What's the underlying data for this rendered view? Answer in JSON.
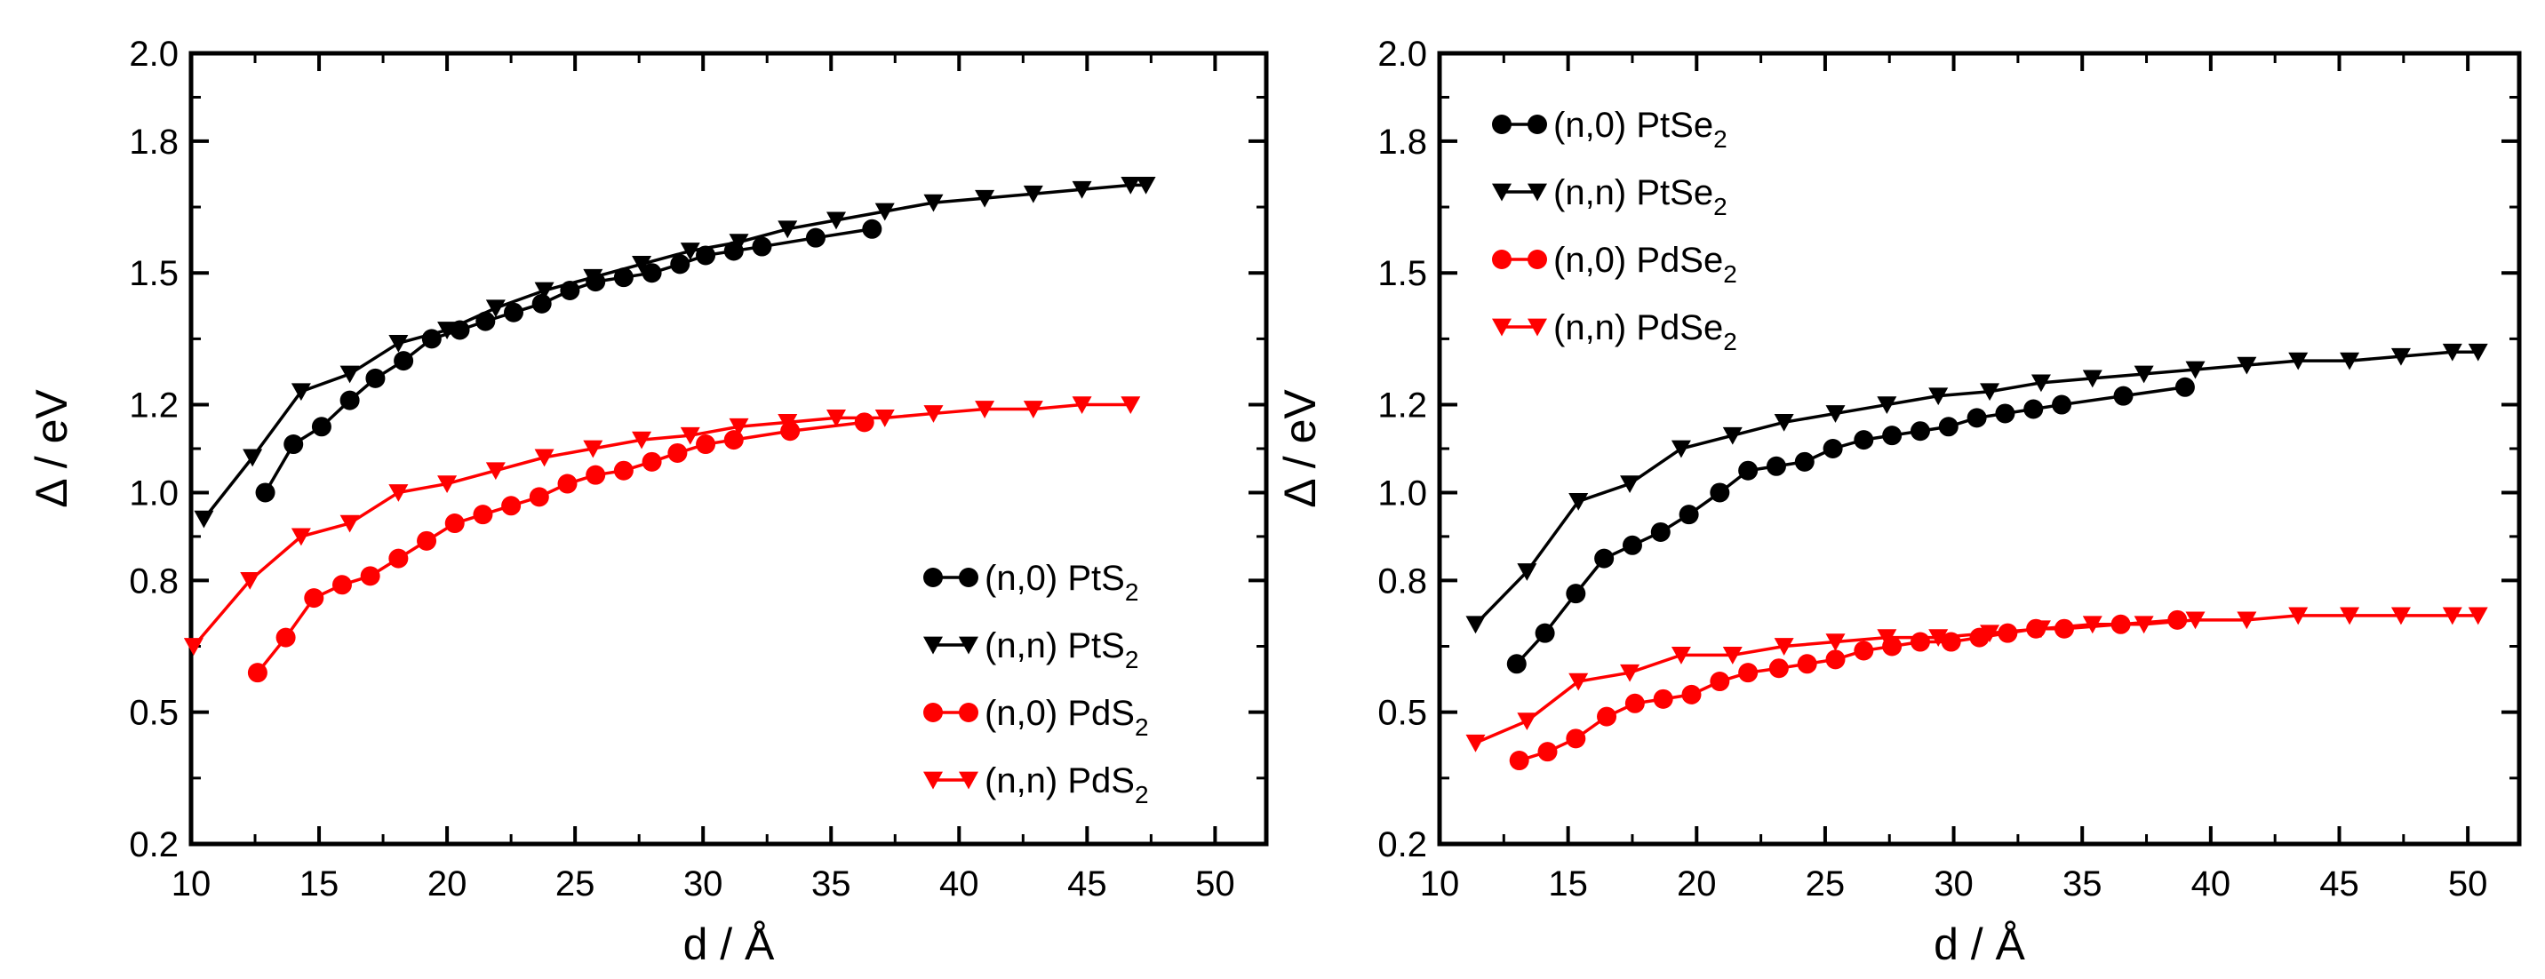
{
  "chart_data": [
    {
      "type": "line",
      "xlabel": "d / Å",
      "ylabel": "Δ / eV",
      "xlim": [
        10,
        52
      ],
      "ylim": [
        0.2,
        2.0
      ],
      "x_ticks": [
        10,
        15,
        20,
        25,
        30,
        35,
        40,
        45,
        50
      ],
      "y_ticks": [
        0.2,
        0.5,
        0.8,
        1.0,
        1.2,
        1.5,
        1.8,
        2.0
      ],
      "y_tick_labels": [
        "0.2",
        "0.5",
        "0.8",
        "1.0",
        "1.2",
        "1.5",
        "1.8",
        "2.0"
      ],
      "legend_position": "bottom-right",
      "series": [
        {
          "name": "(n,0) PtS2",
          "legend_main": "(n,0) PtS",
          "legend_sub": "2",
          "color": "#000000",
          "marker": "circle",
          "x": [
            12.9,
            14.0,
            15.1,
            16.2,
            17.2,
            18.3,
            19.4,
            20.5,
            21.5,
            22.6,
            23.7,
            24.8,
            25.8,
            26.9,
            28.0,
            29.1,
            30.1,
            31.2,
            32.3,
            34.4,
            36.6
          ],
          "y": [
            1.0,
            1.11,
            1.15,
            1.21,
            1.26,
            1.3,
            1.35,
            1.37,
            1.39,
            1.41,
            1.43,
            1.46,
            1.48,
            1.49,
            1.5,
            1.52,
            1.54,
            1.55,
            1.56,
            1.58,
            1.6
          ]
        },
        {
          "name": "(n,n) PtS2",
          "legend_main": "(n,n) PtS",
          "legend_sub": "2",
          "color": "#000000",
          "marker": "triangle-down",
          "x": [
            10.5,
            12.4,
            14.3,
            16.2,
            18.1,
            20.0,
            21.9,
            23.8,
            25.7,
            27.6,
            29.5,
            31.4,
            33.3,
            35.2,
            37.1,
            39.0,
            41.0,
            42.9,
            44.8,
            46.7
          ],
          "y": [
            0.94,
            1.08,
            1.23,
            1.27,
            1.34,
            1.37,
            1.42,
            1.46,
            1.49,
            1.52,
            1.55,
            1.57,
            1.6,
            1.62,
            1.64,
            1.66,
            1.67,
            1.68,
            1.69,
            1.7
          ],
          "x_extra": [
            47.3
          ],
          "y_extra": [
            1.7
          ]
        },
        {
          "name": "(n,0) PdS2",
          "legend_main": "(n,0) PdS",
          "legend_sub": "2",
          "color": "#ff0000",
          "marker": "circle",
          "x": [
            12.6,
            13.7,
            14.8,
            15.9,
            17.0,
            18.1,
            19.2,
            20.3,
            21.4,
            22.5,
            23.6,
            24.7,
            25.8,
            26.9,
            28.0,
            29.0,
            30.1,
            31.2,
            33.4,
            36.3
          ],
          "y": [
            0.59,
            0.67,
            0.76,
            0.79,
            0.81,
            0.85,
            0.89,
            0.93,
            0.95,
            0.97,
            0.99,
            1.02,
            1.04,
            1.05,
            1.07,
            1.09,
            1.11,
            1.12,
            1.14,
            1.16
          ],
          "x_extra": [],
          "y_extra": []
        },
        {
          "name": "(n,n) PdS2",
          "legend_main": "(n,n) PdS",
          "legend_sub": "2",
          "color": "#ff0000",
          "marker": "triangle-down",
          "x": [
            10.1,
            12.3,
            14.3,
            16.2,
            18.1,
            20.0,
            21.9,
            23.8,
            25.7,
            27.6,
            29.5,
            31.4,
            33.3,
            35.2,
            37.1,
            39.0,
            41.0,
            42.9,
            44.8,
            46.7
          ],
          "y": [
            0.65,
            0.8,
            0.9,
            0.93,
            1.0,
            1.02,
            1.05,
            1.08,
            1.1,
            1.12,
            1.13,
            1.15,
            1.16,
            1.17,
            1.17,
            1.18,
            1.19,
            1.19,
            1.2,
            1.2
          ]
        }
      ]
    },
    {
      "type": "line",
      "xlabel": "d / Å",
      "ylabel": "Δ / eV",
      "xlim": [
        10,
        52
      ],
      "ylim": [
        0.2,
        2.0
      ],
      "x_ticks": [
        10,
        15,
        20,
        25,
        30,
        35,
        40,
        45,
        50
      ],
      "y_ticks": [
        0.2,
        0.5,
        0.8,
        1.0,
        1.2,
        1.5,
        1.8,
        2.0
      ],
      "y_tick_labels": [
        "0.2",
        "0.5",
        "0.8",
        "1.0",
        "1.2",
        "1.5",
        "1.8",
        "2.0"
      ],
      "legend_position": "top-left",
      "series": [
        {
          "name": "(n,0) PtSe2",
          "legend_main": "(n,0) PtSe",
          "legend_sub": "2",
          "color": "#000000",
          "marker": "circle",
          "x": [
            13.0,
            14.1,
            15.3,
            16.4,
            17.5,
            18.6,
            19.7,
            20.9,
            22.0,
            23.1,
            24.2,
            25.3,
            26.5,
            27.6,
            28.7,
            29.8,
            30.9,
            32.0,
            33.1,
            34.2,
            36.6,
            39.0
          ],
          "y": [
            0.61,
            0.68,
            0.77,
            0.85,
            0.88,
            0.91,
            0.95,
            1.0,
            1.05,
            1.06,
            1.07,
            1.1,
            1.12,
            1.13,
            1.14,
            1.15,
            1.17,
            1.18,
            1.19,
            1.2,
            1.22,
            1.24
          ]
        },
        {
          "name": "(n,n) PtSe2",
          "legend_main": "(n,n) PtSe",
          "legend_sub": "2",
          "color": "#000000",
          "marker": "triangle-down",
          "x": [
            11.4,
            13.4,
            15.4,
            17.4,
            19.4,
            21.4,
            23.4,
            25.4,
            27.4,
            29.4,
            31.4,
            33.4,
            35.4,
            37.4,
            39.4,
            41.4,
            43.4,
            45.4,
            47.4,
            49.4,
            50.4
          ],
          "y": [
            0.7,
            0.82,
            0.98,
            1.02,
            1.1,
            1.13,
            1.16,
            1.18,
            1.2,
            1.22,
            1.23,
            1.25,
            1.26,
            1.27,
            1.28,
            1.29,
            1.3,
            1.3,
            1.31,
            1.32,
            1.32
          ]
        },
        {
          "name": "(n,0) PdSe2",
          "legend_main": "(n,0) PdSe",
          "legend_sub": "2",
          "color": "#ff0000",
          "marker": "circle",
          "x": [
            13.1,
            14.2,
            15.3,
            16.5,
            17.6,
            18.7,
            19.8,
            20.9,
            22.0,
            23.2,
            24.3,
            25.4,
            26.5,
            27.6,
            28.7,
            29.9,
            31.0,
            32.1,
            33.2,
            34.3,
            36.5,
            38.7
          ],
          "y": [
            0.39,
            0.41,
            0.44,
            0.49,
            0.52,
            0.53,
            0.54,
            0.57,
            0.59,
            0.6,
            0.61,
            0.62,
            0.64,
            0.65,
            0.66,
            0.66,
            0.67,
            0.68,
            0.69,
            0.69,
            0.7,
            0.71
          ]
        },
        {
          "name": "(n,n) PdSe2",
          "legend_main": "(n,n) PdSe",
          "legend_sub": "2",
          "color": "#ff0000",
          "marker": "triangle-down",
          "x": [
            11.4,
            13.4,
            15.4,
            17.4,
            19.4,
            21.4,
            23.4,
            25.4,
            27.4,
            29.4,
            31.4,
            33.4,
            35.4,
            37.4,
            39.4,
            41.4,
            43.4,
            45.4,
            47.4,
            49.4,
            50.4
          ],
          "y": [
            0.43,
            0.48,
            0.57,
            0.59,
            0.63,
            0.63,
            0.65,
            0.66,
            0.67,
            0.67,
            0.68,
            0.69,
            0.7,
            0.7,
            0.71,
            0.71,
            0.72,
            0.72,
            0.72,
            0.72,
            0.72
          ]
        }
      ]
    }
  ]
}
